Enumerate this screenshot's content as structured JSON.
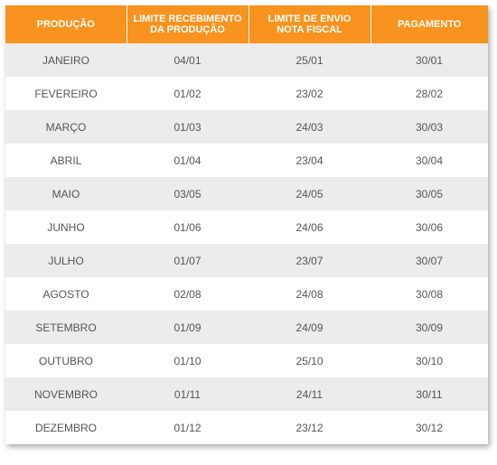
{
  "table": {
    "headers": [
      [
        "PRODUÇÃO"
      ],
      [
        "LIMITE RECEBIMENTO",
        "DA PRODUÇÃO"
      ],
      [
        "LIMITE DE ENVIO",
        "NOTA FISCAL"
      ],
      [
        "PAGAMENTO"
      ]
    ],
    "rows": [
      [
        "JANEIRO",
        "04/01",
        "25/01",
        "30/01"
      ],
      [
        "FEVEREIRO",
        "01/02",
        "23/02",
        "28/02"
      ],
      [
        "MARÇO",
        "01/03",
        "24/03",
        "30/03"
      ],
      [
        "ABRIL",
        "01/04",
        "23/04",
        "30/04"
      ],
      [
        "MAIO",
        "03/05",
        "24/05",
        "30/05"
      ],
      [
        "JUNHO",
        "01/06",
        "24/06",
        "30/06"
      ],
      [
        "JULHO",
        "01/07",
        "23/07",
        "30/07"
      ],
      [
        "AGOSTO",
        "02/08",
        "24/08",
        "30/08"
      ],
      [
        "SETEMBRO",
        "01/09",
        "24/09",
        "30/09"
      ],
      [
        "OUTUBRO",
        "01/10",
        "25/10",
        "30/10"
      ],
      [
        "NOVEMBRO",
        "01/11",
        "24/11",
        "30/11"
      ],
      [
        "DEZEMBRO",
        "01/12",
        "23/12",
        "30/12"
      ]
    ]
  },
  "colors": {
    "header_bg": "#f7931e",
    "header_text": "#ffffff",
    "row_stripe": "#ececec",
    "row_plain": "#ffffff",
    "cell_text": "#555555"
  }
}
